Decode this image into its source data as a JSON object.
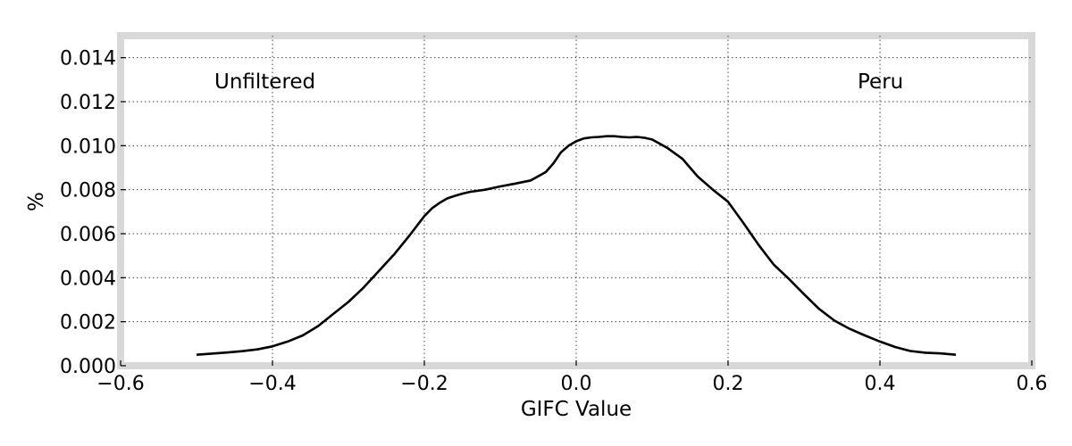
{
  "chart_data": {
    "type": "line",
    "title": "",
    "xlabel": "GIFC Value",
    "ylabel": "%",
    "xlim": [
      -0.6,
      0.6
    ],
    "ylim": [
      0.0,
      0.015
    ],
    "xticks": [
      -0.6,
      -0.4,
      -0.2,
      0.0,
      0.2,
      0.4,
      0.6
    ],
    "xtick_labels": [
      "−0.6",
      "−0.4",
      "−0.2",
      "0.0",
      "0.2",
      "0.4",
      "0.6"
    ],
    "yticks": [
      0.0,
      0.002,
      0.004,
      0.006,
      0.008,
      0.01,
      0.012,
      0.014
    ],
    "ytick_labels": [
      "0.000",
      "0.002",
      "0.004",
      "0.006",
      "0.008",
      "0.010",
      "0.012",
      "0.014"
    ],
    "grid": true,
    "annotations": [
      {
        "text": "Unfiltered",
        "position": "top-left"
      },
      {
        "text": "Peru",
        "position": "top-right"
      }
    ],
    "series": [
      {
        "color": "#000000",
        "x": [
          -0.5,
          -0.48,
          -0.46,
          -0.44,
          -0.42,
          -0.4,
          -0.38,
          -0.36,
          -0.34,
          -0.32,
          -0.3,
          -0.28,
          -0.26,
          -0.24,
          -0.22,
          -0.2,
          -0.19,
          -0.18,
          -0.17,
          -0.16,
          -0.15,
          -0.14,
          -0.12,
          -0.1,
          -0.08,
          -0.06,
          -0.04,
          -0.03,
          -0.02,
          -0.01,
          0.0,
          0.01,
          0.02,
          0.03,
          0.04,
          0.05,
          0.06,
          0.07,
          0.08,
          0.09,
          0.1,
          0.12,
          0.14,
          0.16,
          0.18,
          0.2,
          0.22,
          0.24,
          0.26,
          0.28,
          0.3,
          0.32,
          0.34,
          0.36,
          0.38,
          0.4,
          0.42,
          0.44,
          0.46,
          0.48,
          0.5
        ],
        "y": [
          0.0005,
          0.00055,
          0.0006,
          0.00066,
          0.00074,
          0.00088,
          0.0011,
          0.00138,
          0.0018,
          0.00235,
          0.0029,
          0.00355,
          0.0043,
          0.00505,
          0.0059,
          0.0068,
          0.00715,
          0.0074,
          0.0076,
          0.00772,
          0.00782,
          0.0079,
          0.008,
          0.00815,
          0.00828,
          0.00842,
          0.0088,
          0.0092,
          0.0097,
          0.01,
          0.0102,
          0.01033,
          0.01038,
          0.0104,
          0.01043,
          0.01043,
          0.0104,
          0.01038,
          0.0104,
          0.01036,
          0.01028,
          0.0099,
          0.0094,
          0.0086,
          0.008,
          0.00745,
          0.0065,
          0.0055,
          0.0046,
          0.00395,
          0.00325,
          0.00258,
          0.00205,
          0.00168,
          0.00138,
          0.0011,
          0.00085,
          0.00067,
          0.00059,
          0.00056,
          0.0005
        ]
      }
    ]
  }
}
